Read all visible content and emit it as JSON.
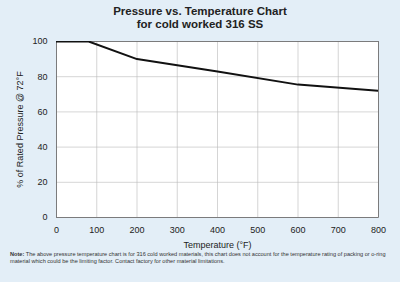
{
  "chart_data": {
    "type": "line",
    "title": "Pressure vs. Temperature Chart",
    "subtitle": "for cold worked 316 SS",
    "x_label": "Temperature (°F)",
    "y_label": "% of Rated Pressure @ 72°F",
    "x": [
      0,
      80,
      200,
      400,
      600,
      800
    ],
    "values": [
      100,
      100,
      90,
      83,
      75.5,
      72
    ],
    "color": "#111111",
    "xlim": [
      0,
      800
    ],
    "xticks": [
      0,
      100,
      200,
      300,
      400,
      500,
      600,
      700,
      800
    ],
    "ylim": [
      0,
      100
    ],
    "yticks": [
      0,
      20,
      40,
      60,
      80,
      100
    ],
    "grid": true,
    "note": "Note: The above pressure temperature chart is for 316 cold worked materials, this chart does not account for the temperature rating of packing or o-ring material which could be the limiting factor. Contact factory for other material limitations."
  }
}
